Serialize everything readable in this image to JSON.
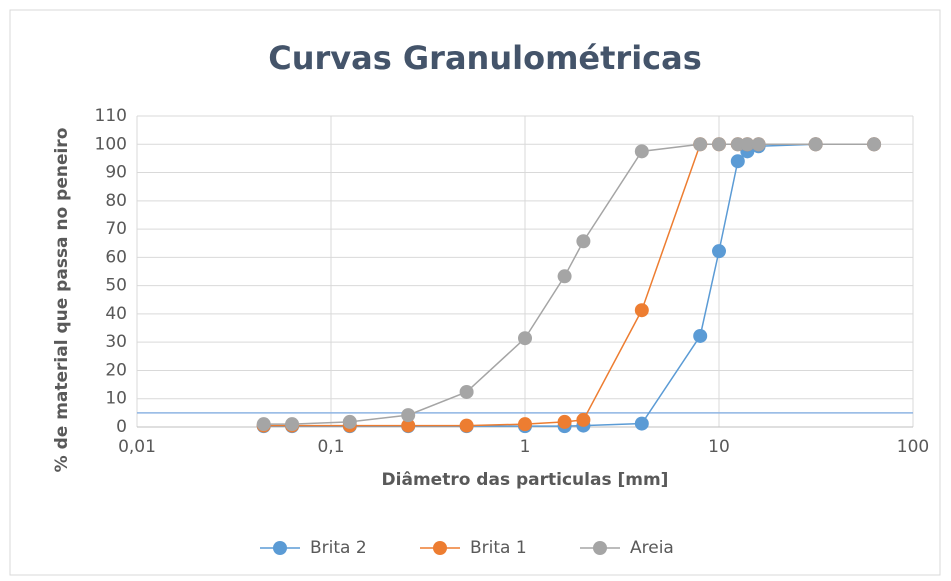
{
  "chart_data": {
    "type": "line",
    "title": "Curvas Granulométricas",
    "xlabel": "Diâmetro das particulas [mm]",
    "ylabel": "% de material que passa no peneiro",
    "x": [
      0.045,
      0.063,
      0.125,
      0.25,
      0.5,
      1,
      1.6,
      2,
      4,
      8,
      10,
      12.5,
      14,
      16,
      31.5,
      63
    ],
    "series": [
      {
        "name": "Brita 2",
        "color": "#5b9bd5",
        "values": [
          0.3,
          0.3,
          0.3,
          0.3,
          0.3,
          0.3,
          0.3,
          0.5,
          1.2,
          32.2,
          62.2,
          94,
          97.5,
          99.3,
          100,
          100
        ]
      },
      {
        "name": "Brita 1",
        "color": "#ed7d31",
        "values": [
          0.5,
          0.5,
          0.5,
          0.5,
          0.5,
          1,
          1.8,
          2.5,
          41.3,
          100,
          100,
          100,
          100,
          100,
          100,
          100
        ]
      },
      {
        "name": "Areia",
        "color": "#a5a5a5",
        "values": [
          1,
          1,
          1.8,
          4.2,
          12.4,
          31.4,
          53.3,
          65.7,
          97.5,
          100,
          100,
          100,
          100,
          100,
          100,
          100
        ]
      }
    ],
    "xscale": "log",
    "xlim": [
      0.01,
      100
    ],
    "xticks": [
      {
        "value": 0.01,
        "label": "0,01"
      },
      {
        "value": 0.1,
        "label": "0,1"
      },
      1,
      10,
      100
    ],
    "ylim": [
      0,
      110
    ],
    "yticks": [
      0,
      10,
      20,
      30,
      40,
      50,
      60,
      70,
      80,
      90,
      100,
      110
    ],
    "hline": {
      "value": 5,
      "color": "#8eb4e3"
    },
    "grid": true,
    "legend": "bottom"
  }
}
